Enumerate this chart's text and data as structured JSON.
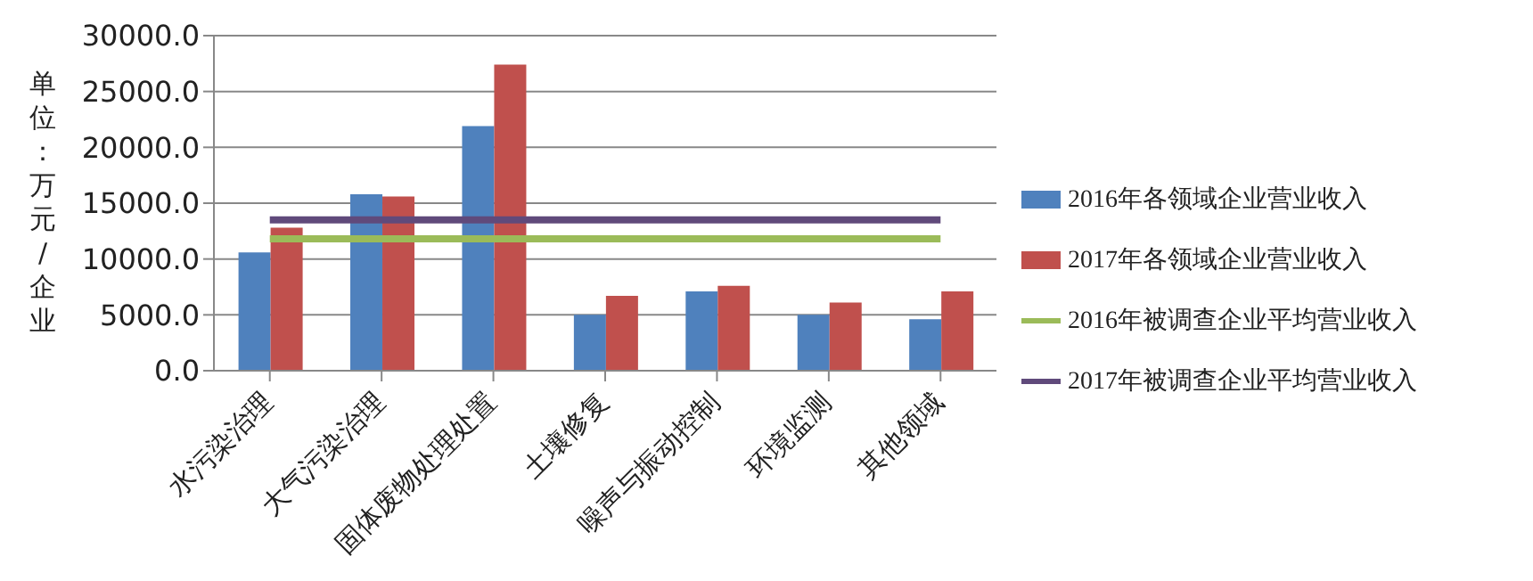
{
  "chart_data": {
    "type": "bar",
    "ylabel": "单位：万元/企业",
    "categories": [
      "水污染治理",
      "大气污染治理",
      "固体废物处理处置",
      "土壤修复",
      "噪声与振动控制",
      "环境监测",
      "其他领域"
    ],
    "series": [
      {
        "name": "2016年各领域企业营业收入",
        "color": "#4f81bd",
        "values": [
          10600,
          15800,
          21900,
          5000,
          7100,
          5000,
          4600
        ]
      },
      {
        "name": "2017年各领域企业营业收入",
        "color": "#c0504d",
        "values": [
          12800,
          15600,
          27400,
          6700,
          7600,
          6100,
          7100
        ]
      },
      {
        "name": "2016年被调查企业平均营业收入",
        "type": "line",
        "color": "#9bbb59",
        "values": [
          11800,
          11800,
          11800,
          11800,
          11800,
          11800,
          11800
        ]
      },
      {
        "name": "2017年被调查企业平均营业收入",
        "type": "line",
        "color": "#604a7b",
        "values": [
          13500,
          13500,
          13500,
          13500,
          13500,
          13500,
          13500
        ]
      }
    ],
    "ylim": [
      0,
      30000
    ],
    "yticks": [
      {
        "value": 0,
        "label": "0.0"
      },
      {
        "value": 5000,
        "label": "5000.0"
      },
      {
        "value": 10000,
        "label": "10000.0"
      },
      {
        "value": 15000,
        "label": "15000.0"
      },
      {
        "value": 20000,
        "label": "20000.0"
      },
      {
        "value": 25000,
        "label": "25000.0"
      },
      {
        "value": 30000,
        "label": "30000.0"
      }
    ],
    "grid": "y",
    "legend": "right",
    "marker": "none"
  }
}
